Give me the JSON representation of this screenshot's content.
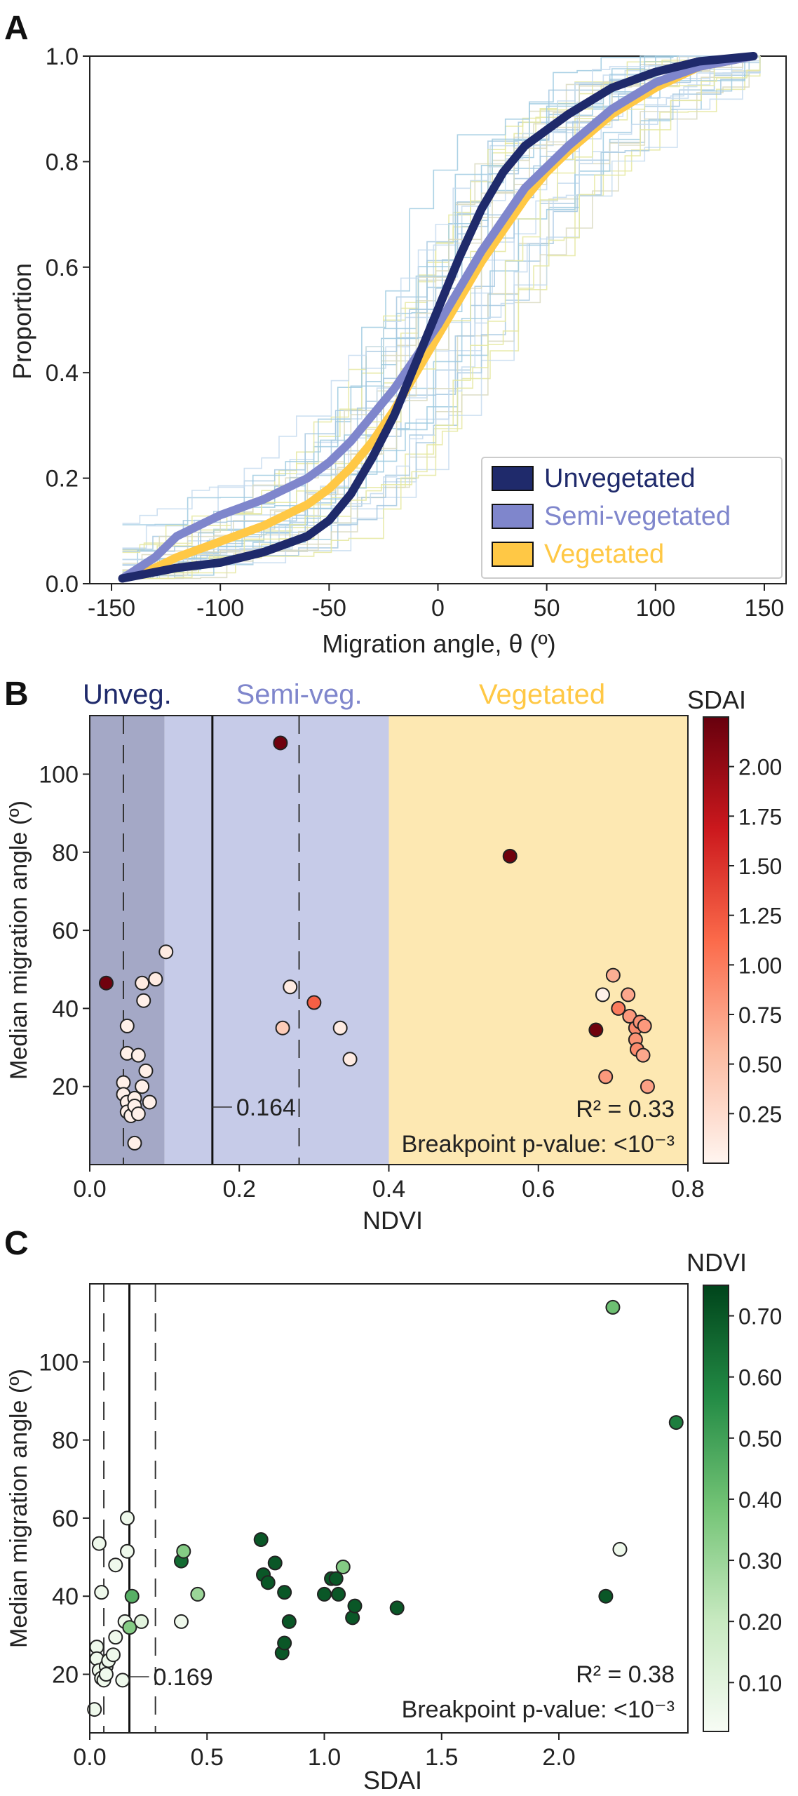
{
  "chart_data": [
    {
      "panel": "A",
      "type": "line",
      "xlabel": "Migration angle, θ (º)",
      "ylabel": "Proportion",
      "xlim": [
        -160,
        160
      ],
      "ylim": [
        0,
        1
      ],
      "xticks": [
        -150,
        -100,
        -50,
        0,
        50,
        100,
        150
      ],
      "yticks": [
        0.0,
        0.2,
        0.4,
        0.6,
        0.8,
        1.0
      ],
      "grid": false,
      "legend": "bottom-right",
      "series": [
        {
          "name": "Unvegetated",
          "color": "#1f2a6b",
          "x": [
            -145,
            -120,
            -100,
            -80,
            -60,
            -50,
            -40,
            -30,
            -20,
            -10,
            0,
            10,
            20,
            30,
            40,
            50,
            60,
            80,
            100,
            120,
            145
          ],
          "y": [
            0.01,
            0.03,
            0.04,
            0.06,
            0.09,
            0.12,
            0.17,
            0.24,
            0.32,
            0.42,
            0.52,
            0.62,
            0.71,
            0.78,
            0.83,
            0.86,
            0.89,
            0.94,
            0.97,
            0.99,
            1.0
          ]
        },
        {
          "name": "Semi-vegetated",
          "color": "#7f86cc",
          "x": [
            -145,
            -130,
            -120,
            -100,
            -80,
            -60,
            -50,
            -40,
            -30,
            -20,
            -10,
            0,
            10,
            20,
            30,
            40,
            50,
            60,
            80,
            100,
            120,
            145
          ],
          "y": [
            0.01,
            0.05,
            0.09,
            0.13,
            0.16,
            0.2,
            0.23,
            0.27,
            0.32,
            0.37,
            0.43,
            0.49,
            0.56,
            0.63,
            0.69,
            0.75,
            0.79,
            0.83,
            0.9,
            0.95,
            0.98,
            1.0
          ]
        },
        {
          "name": "Vegetated",
          "color": "#ffc845",
          "x": [
            -145,
            -130,
            -120,
            -100,
            -80,
            -60,
            -50,
            -40,
            -30,
            -20,
            -10,
            0,
            10,
            20,
            30,
            40,
            50,
            60,
            80,
            100,
            120,
            145
          ],
          "y": [
            0.01,
            0.03,
            0.05,
            0.08,
            0.11,
            0.15,
            0.18,
            0.22,
            0.27,
            0.33,
            0.4,
            0.47,
            0.54,
            0.61,
            0.67,
            0.73,
            0.78,
            0.82,
            0.89,
            0.94,
            0.98,
            1.0
          ]
        }
      ]
    },
    {
      "panel": "B",
      "type": "scatter",
      "xlabel": "NDVI",
      "ylabel": "Median migration angle (º)",
      "xlim": [
        0,
        0.8
      ],
      "ylim": [
        0,
        115
      ],
      "xticks": [
        0.0,
        0.2,
        0.4,
        0.6,
        0.8
      ],
      "yticks": [
        20,
        40,
        60,
        80,
        100
      ],
      "regions": [
        {
          "label": "Unveg.",
          "x0": 0.0,
          "x1": 0.1,
          "color": "#a4a8c6",
          "label_color": "#1f2a6b"
        },
        {
          "label": "Semi-veg.",
          "x0": 0.1,
          "x1": 0.4,
          "color": "#c6cbe8",
          "label_color": "#7f86cc"
        },
        {
          "label": "Vegetated",
          "x0": 0.4,
          "x1": 0.8,
          "color": "#fde8b2",
          "label_color": "#ffc845"
        }
      ],
      "breakpoint": 0.164,
      "breakpoint_label": "0.164",
      "dashed_lines": [
        0.045,
        0.28
      ],
      "r2_text": "R² = 0.33",
      "pvalue_text": "Breakpoint p-value: <10⁻³",
      "colorbar": {
        "label": "SDAI",
        "min": 0.0,
        "max": 2.25,
        "ticks": [
          0.25,
          0.5,
          0.75,
          1.0,
          1.25,
          1.5,
          1.75,
          2.0
        ],
        "tick_labels": [
          "0.25",
          "0.50",
          "0.75",
          "1.00",
          "1.25",
          "1.50",
          "1.75",
          "2.00"
        ],
        "colors": [
          "#fff5f0",
          "#fcbba1",
          "#fb6a4a",
          "#cb181d",
          "#67000d"
        ]
      },
      "points": [
        {
          "x": 0.022,
          "y": 46.5,
          "c": 2.2
        },
        {
          "x": 0.05,
          "y": 35.5,
          "c": 0.05
        },
        {
          "x": 0.05,
          "y": 28.5,
          "c": 0.05
        },
        {
          "x": 0.045,
          "y": 21,
          "c": 0.05
        },
        {
          "x": 0.045,
          "y": 18,
          "c": 0.05
        },
        {
          "x": 0.05,
          "y": 16,
          "c": 0.05
        },
        {
          "x": 0.05,
          "y": 13.5,
          "c": 0.05
        },
        {
          "x": 0.055,
          "y": 12.5,
          "c": 0.05
        },
        {
          "x": 0.06,
          "y": 17,
          "c": 0.05
        },
        {
          "x": 0.06,
          "y": 15,
          "c": 0.05
        },
        {
          "x": 0.065,
          "y": 28,
          "c": 0.05
        },
        {
          "x": 0.07,
          "y": 20,
          "c": 0.05
        },
        {
          "x": 0.075,
          "y": 24,
          "c": 0.05
        },
        {
          "x": 0.072,
          "y": 42,
          "c": 0.05
        },
        {
          "x": 0.08,
          "y": 16,
          "c": 0.05
        },
        {
          "x": 0.06,
          "y": 5.5,
          "c": 0.05
        },
        {
          "x": 0.065,
          "y": 13,
          "c": 0.05
        },
        {
          "x": 0.07,
          "y": 46.5,
          "c": 0.1
        },
        {
          "x": 0.088,
          "y": 47.5,
          "c": 0.1
        },
        {
          "x": 0.102,
          "y": 54.5,
          "c": 0.1
        },
        {
          "x": 0.255,
          "y": 108,
          "c": 2.2
        },
        {
          "x": 0.258,
          "y": 35,
          "c": 0.4
        },
        {
          "x": 0.268,
          "y": 45.5,
          "c": 0.1
        },
        {
          "x": 0.3,
          "y": 41.5,
          "c": 1.2
        },
        {
          "x": 0.335,
          "y": 35,
          "c": 0.1
        },
        {
          "x": 0.348,
          "y": 27,
          "c": 0.1
        },
        {
          "x": 0.562,
          "y": 79,
          "c": 2.2
        },
        {
          "x": 0.677,
          "y": 34.5,
          "c": 2.2
        },
        {
          "x": 0.69,
          "y": 22.5,
          "c": 0.8
        },
        {
          "x": 0.686,
          "y": 43.5,
          "c": 0.05
        },
        {
          "x": 0.7,
          "y": 48.5,
          "c": 0.65
        },
        {
          "x": 0.707,
          "y": 40,
          "c": 1.0
        },
        {
          "x": 0.72,
          "y": 43.5,
          "c": 0.7
        },
        {
          "x": 0.722,
          "y": 38,
          "c": 0.8
        },
        {
          "x": 0.73,
          "y": 35,
          "c": 0.9
        },
        {
          "x": 0.73,
          "y": 32,
          "c": 0.85
        },
        {
          "x": 0.732,
          "y": 29.5,
          "c": 0.9
        },
        {
          "x": 0.736,
          "y": 36.5,
          "c": 0.85
        },
        {
          "x": 0.742,
          "y": 35.5,
          "c": 0.8
        },
        {
          "x": 0.74,
          "y": 28,
          "c": 0.7
        },
        {
          "x": 0.746,
          "y": 20,
          "c": 0.75
        }
      ]
    },
    {
      "panel": "C",
      "type": "scatter",
      "xlabel": "SDAI",
      "ylabel": "Median migration angle (º)",
      "xlim": [
        0,
        2.55
      ],
      "ylim": [
        5,
        120
      ],
      "xticks": [
        0.0,
        0.5,
        1.0,
        1.5,
        2.0
      ],
      "yticks": [
        20,
        40,
        60,
        80,
        100
      ],
      "breakpoint": 0.169,
      "breakpoint_label": "0.169",
      "dashed_lines": [
        0.06,
        0.28
      ],
      "r2_text": "R² = 0.38",
      "pvalue_text": "Breakpoint p-value: <10⁻³",
      "colorbar": {
        "label": "NDVI",
        "min": 0.02,
        "max": 0.75,
        "ticks": [
          0.1,
          0.2,
          0.3,
          0.4,
          0.5,
          0.6,
          0.7
        ],
        "tick_labels": [
          "0.10",
          "0.20",
          "0.30",
          "0.40",
          "0.50",
          "0.60",
          "0.70"
        ],
        "colors": [
          "#f7fcf5",
          "#c7e9c0",
          "#74c476",
          "#238b45",
          "#00441b"
        ]
      },
      "points": [
        {
          "x": 0.02,
          "y": 11,
          "c": 0.05
        },
        {
          "x": 0.03,
          "y": 27,
          "c": 0.05
        },
        {
          "x": 0.03,
          "y": 24,
          "c": 0.05
        },
        {
          "x": 0.04,
          "y": 21,
          "c": 0.05
        },
        {
          "x": 0.05,
          "y": 19,
          "c": 0.05
        },
        {
          "x": 0.06,
          "y": 18.5,
          "c": 0.05
        },
        {
          "x": 0.07,
          "y": 22,
          "c": 0.05
        },
        {
          "x": 0.07,
          "y": 20,
          "c": 0.05
        },
        {
          "x": 0.08,
          "y": 23.5,
          "c": 0.05
        },
        {
          "x": 0.1,
          "y": 25,
          "c": 0.05
        },
        {
          "x": 0.11,
          "y": 29.5,
          "c": 0.05
        },
        {
          "x": 0.14,
          "y": 18.5,
          "c": 0.05
        },
        {
          "x": 0.15,
          "y": 33.5,
          "c": 0.05
        },
        {
          "x": 0.04,
          "y": 53.5,
          "c": 0.05
        },
        {
          "x": 0.05,
          "y": 41,
          "c": 0.05
        },
        {
          "x": 0.11,
          "y": 48,
          "c": 0.05
        },
        {
          "x": 0.16,
          "y": 60,
          "c": 0.05
        },
        {
          "x": 0.16,
          "y": 51.5,
          "c": 0.05
        },
        {
          "x": 0.17,
          "y": 32,
          "c": 0.35
        },
        {
          "x": 0.18,
          "y": 40,
          "c": 0.45
        },
        {
          "x": 0.22,
          "y": 33.5,
          "c": 0.1
        },
        {
          "x": 0.39,
          "y": 33.5,
          "c": 0.05
        },
        {
          "x": 0.39,
          "y": 49,
          "c": 0.65
        },
        {
          "x": 0.4,
          "y": 51.5,
          "c": 0.35
        },
        {
          "x": 0.46,
          "y": 40.5,
          "c": 0.3
        },
        {
          "x": 0.73,
          "y": 54.5,
          "c": 0.7
        },
        {
          "x": 0.74,
          "y": 45.5,
          "c": 0.7
        },
        {
          "x": 0.76,
          "y": 43.5,
          "c": 0.7
        },
        {
          "x": 0.79,
          "y": 48.5,
          "c": 0.7
        },
        {
          "x": 0.82,
          "y": 25.5,
          "c": 0.7
        },
        {
          "x": 0.83,
          "y": 41,
          "c": 0.7
        },
        {
          "x": 0.83,
          "y": 28,
          "c": 0.7
        },
        {
          "x": 0.85,
          "y": 33.5,
          "c": 0.7
        },
        {
          "x": 1.0,
          "y": 40.5,
          "c": 0.7
        },
        {
          "x": 1.03,
          "y": 44.5,
          "c": 0.7
        },
        {
          "x": 1.05,
          "y": 44.5,
          "c": 0.7
        },
        {
          "x": 1.06,
          "y": 40.5,
          "c": 0.7
        },
        {
          "x": 1.08,
          "y": 47.5,
          "c": 0.35
        },
        {
          "x": 1.12,
          "y": 34.5,
          "c": 0.7
        },
        {
          "x": 1.13,
          "y": 37.5,
          "c": 0.7
        },
        {
          "x": 1.31,
          "y": 37,
          "c": 0.7
        },
        {
          "x": 2.2,
          "y": 40,
          "c": 0.7
        },
        {
          "x": 2.23,
          "y": 114,
          "c": 0.4
        },
        {
          "x": 2.26,
          "y": 52,
          "c": 0.05
        },
        {
          "x": 2.5,
          "y": 84.5,
          "c": 0.6
        }
      ]
    }
  ],
  "panel_labels": [
    "A",
    "B",
    "C"
  ]
}
